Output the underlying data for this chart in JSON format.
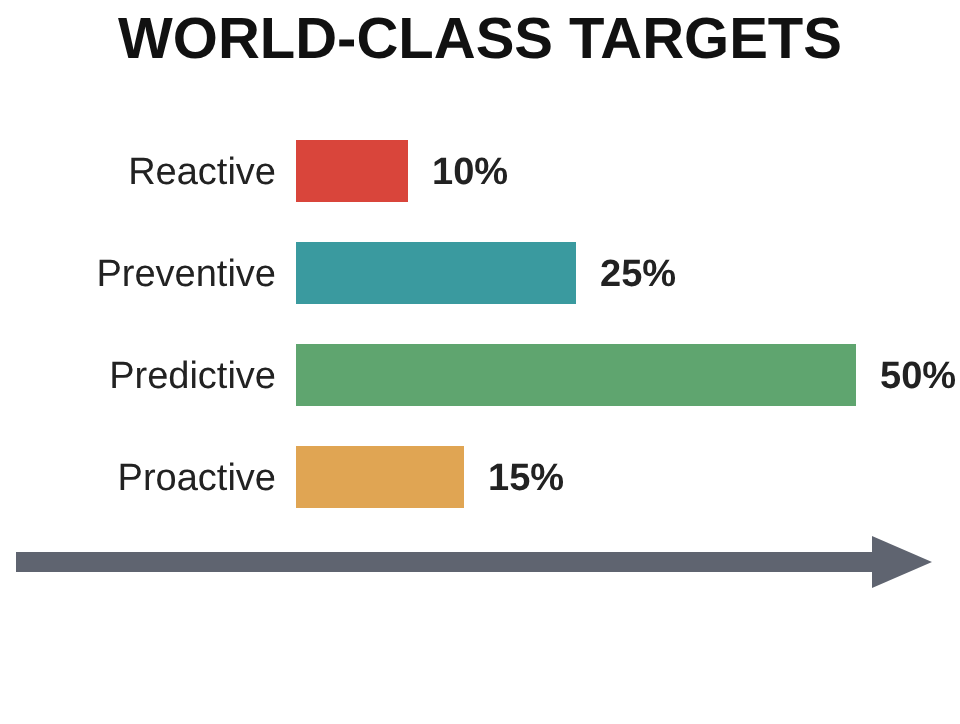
{
  "chart_data": {
    "type": "bar",
    "orientation": "horizontal",
    "title": "WORLD-CLASS TARGETS",
    "categories": [
      "Reactive",
      "Preventive",
      "Predictive",
      "Proactive"
    ],
    "values": [
      10,
      25,
      50,
      15
    ],
    "colors": [
      "#d9453b",
      "#3a9a9f",
      "#5fa56f",
      "#e0a553"
    ],
    "value_labels": [
      "10%",
      "25%",
      "50%",
      "15%"
    ],
    "grid": false,
    "legend": false
  }
}
